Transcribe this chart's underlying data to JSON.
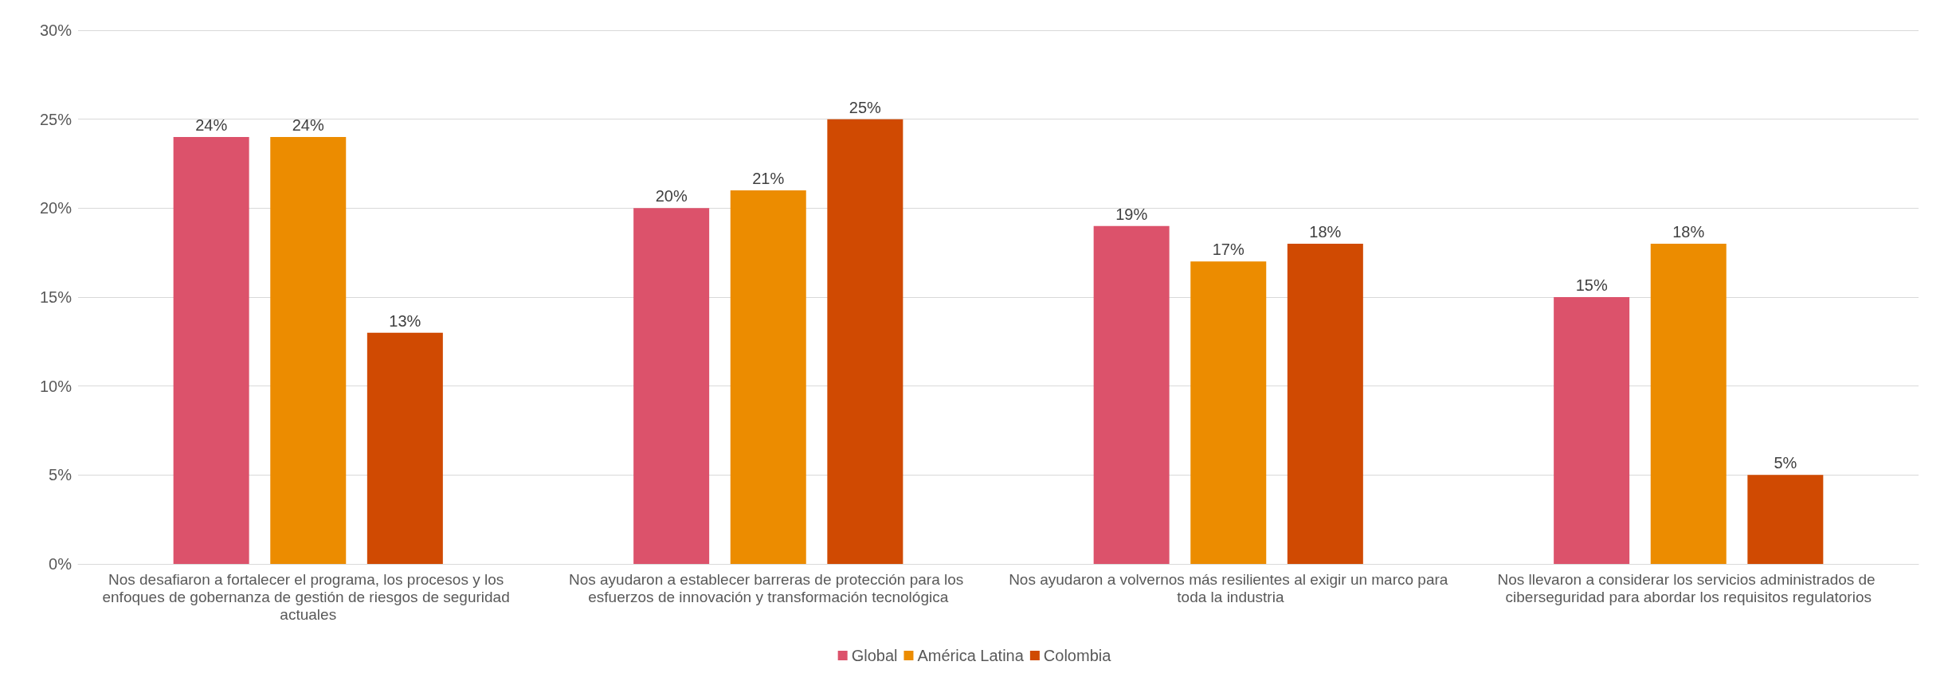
{
  "chart_data": {
    "type": "bar",
    "categories": [
      "Nos desafiaron a fortalecer el programa, los procesos y los enfoques de gobernanza de gestión de riesgos de seguridad actuales",
      "Nos ayudaron a establecer barreras de protección para los esfuerzos de innovación y transformación tecnológica",
      "Nos ayudaron a volvernos más resilientes al exigir un marco para toda la industria",
      "Nos llevaron a considerar los servicios administrados de ciberseguridad para abordar los requisitos regulatorios"
    ],
    "series": [
      {
        "name": "Global",
        "color": "#dc526b",
        "values": [
          24,
          20,
          19,
          15
        ],
        "value_labels": [
          "24%",
          "20%",
          "19%",
          "15%"
        ]
      },
      {
        "name": "América Latina",
        "color": "#ec8c00",
        "values": [
          24,
          21,
          17,
          18
        ],
        "value_labels": [
          "24%",
          "21%",
          "17%",
          "18%"
        ]
      },
      {
        "name": "Colombia",
        "color": "#d04a02",
        "values": [
          13,
          25,
          18,
          5
        ],
        "value_labels": [
          "13%",
          "25%",
          "18%",
          "5%"
        ]
      }
    ],
    "ylim": [
      0,
      30
    ],
    "yticks": [
      {
        "value": 0,
        "label": "0%"
      },
      {
        "value": 5,
        "label": "5%"
      },
      {
        "value": 10,
        "label": "10%"
      },
      {
        "value": 15,
        "label": "15%"
      },
      {
        "value": 20,
        "label": "20%"
      },
      {
        "value": 25,
        "label": "25%"
      },
      {
        "value": 30,
        "label": "30%"
      }
    ],
    "grid": "y",
    "legend": "bottom"
  }
}
